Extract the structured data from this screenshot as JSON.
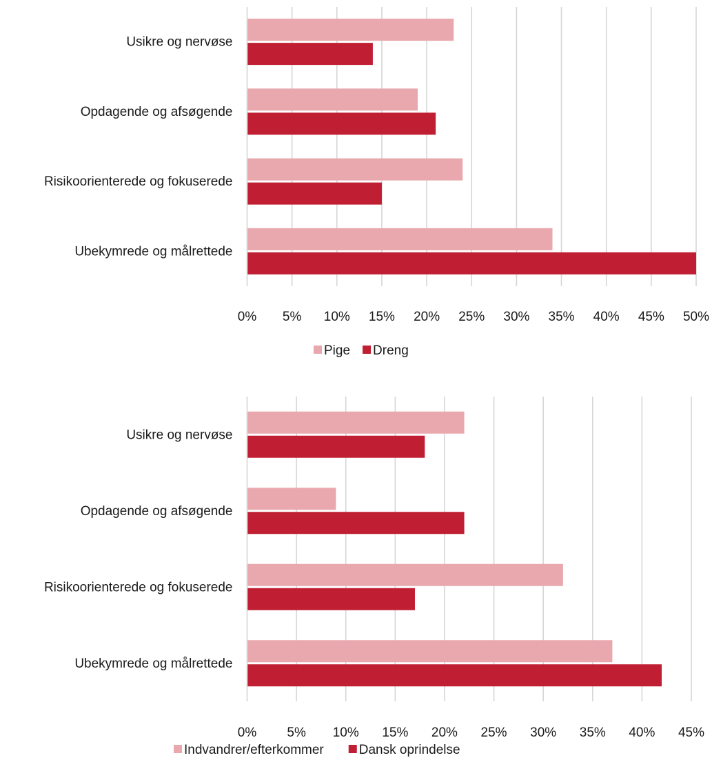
{
  "colors": {
    "series_1": "#e8a8ad",
    "series_2": "#c01f33",
    "grid": "#d6d6d6"
  },
  "chart_data": [
    {
      "type": "bar",
      "orientation": "horizontal",
      "categories": [
        "Usikre og nervøse",
        "Opdagende og afsøgende",
        "Risikoorienterede og fokuserede",
        "Ubekymrede og målrettede"
      ],
      "series": [
        {
          "name": "Pige",
          "values": [
            23,
            19,
            24,
            34
          ],
          "color": "#e8a8ad"
        },
        {
          "name": "Dreng",
          "values": [
            14,
            21,
            15,
            50
          ],
          "color": "#c01f33"
        }
      ],
      "xlim": [
        0,
        50
      ],
      "x_ticks": [
        "0%",
        "5%",
        "10%",
        "15%",
        "20%",
        "25%",
        "30%",
        "35%",
        "40%",
        "45%",
        "50%"
      ],
      "grid": "vertical",
      "legend_position": "bottom"
    },
    {
      "type": "bar",
      "orientation": "horizontal",
      "categories": [
        "Usikre og nervøse",
        "Opdagende og afsøgende",
        "Risikoorienterede og fokuserede",
        "Ubekymrede og målrettede"
      ],
      "series": [
        {
          "name": "Indvandrer/efterkommer",
          "values": [
            22,
            9,
            32,
            37
          ],
          "color": "#e8a8ad"
        },
        {
          "name": "Dansk oprindelse",
          "values": [
            18,
            22,
            17,
            42
          ],
          "color": "#c01f33"
        }
      ],
      "xlim": [
        0,
        45
      ],
      "x_ticks": [
        "0%",
        "5%",
        "10%",
        "15%",
        "20%",
        "25%",
        "30%",
        "35%",
        "40%",
        "45%"
      ],
      "grid": "vertical",
      "legend_position": "bottom"
    }
  ]
}
